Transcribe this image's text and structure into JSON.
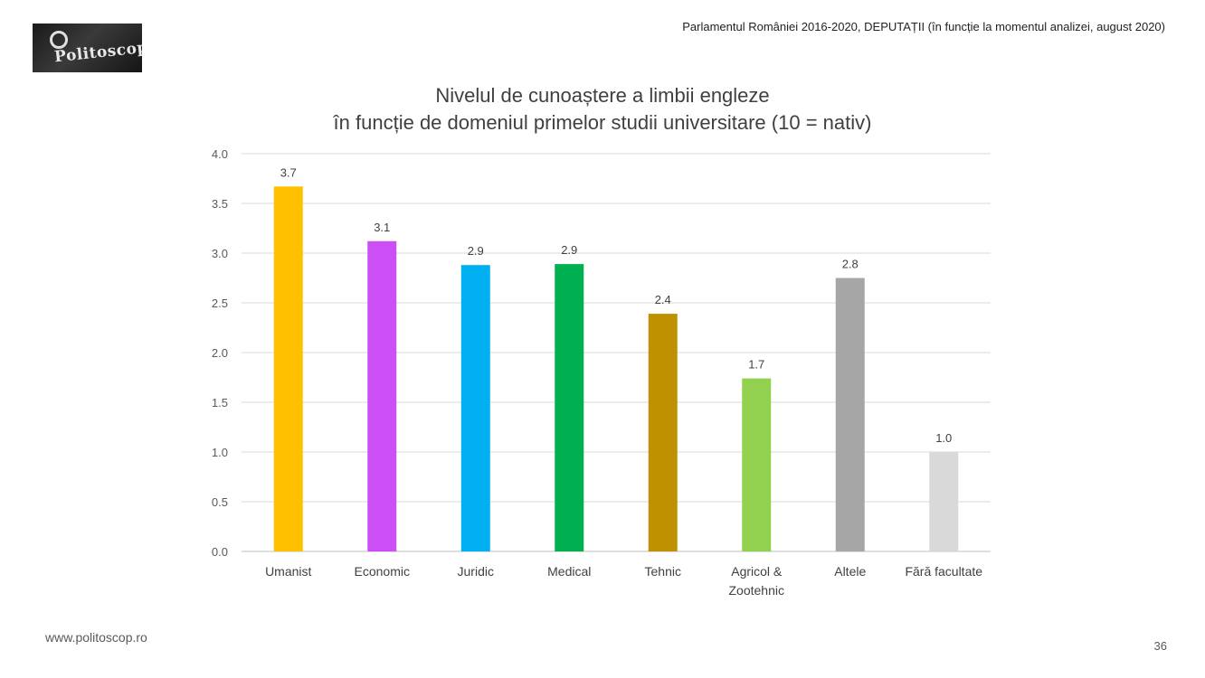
{
  "header": {
    "logo_text": "Politoscop",
    "context": "Parlamentul României 2016-2020, DEPUTAȚII (în funcție la momentul analizei, august 2020)"
  },
  "chart_data": {
    "type": "bar",
    "title_lines": [
      "Nivelul de cunoaștere a limbii engleze",
      "în funcție de domeniul primelor studii universitare (10 = nativ)"
    ],
    "categories": [
      [
        "Umanist"
      ],
      [
        "Economic"
      ],
      [
        "Juridic"
      ],
      [
        "Medical"
      ],
      [
        "Tehnic"
      ],
      [
        "Agricol &",
        "Zootehnic"
      ],
      [
        "Altele"
      ],
      [
        "Fără facultate"
      ]
    ],
    "values": [
      3.67,
      3.12,
      2.88,
      2.89,
      2.39,
      1.74,
      2.75,
      1.0
    ],
    "labels": [
      "3.7",
      "3.1",
      "2.9",
      "2.9",
      "2.4",
      "1.7",
      "2.8",
      "1.0"
    ],
    "colors": [
      "#FFC000",
      "#CC4FF5",
      "#00B0F0",
      "#00B050",
      "#BF9000",
      "#92D050",
      "#A6A6A6",
      "#D9D9D9"
    ],
    "ylim": [
      0,
      4
    ],
    "yticks": [
      "0.0",
      "0.5",
      "1.0",
      "1.5",
      "2.0",
      "2.5",
      "3.0",
      "3.5",
      "4.0"
    ],
    "ytick_values": [
      0,
      0.5,
      1,
      1.5,
      2,
      2.5,
      3,
      3.5,
      4
    ],
    "grid": true,
    "legend": "none"
  },
  "footer": {
    "website": "www.politoscop.ro",
    "page_number": "36"
  }
}
